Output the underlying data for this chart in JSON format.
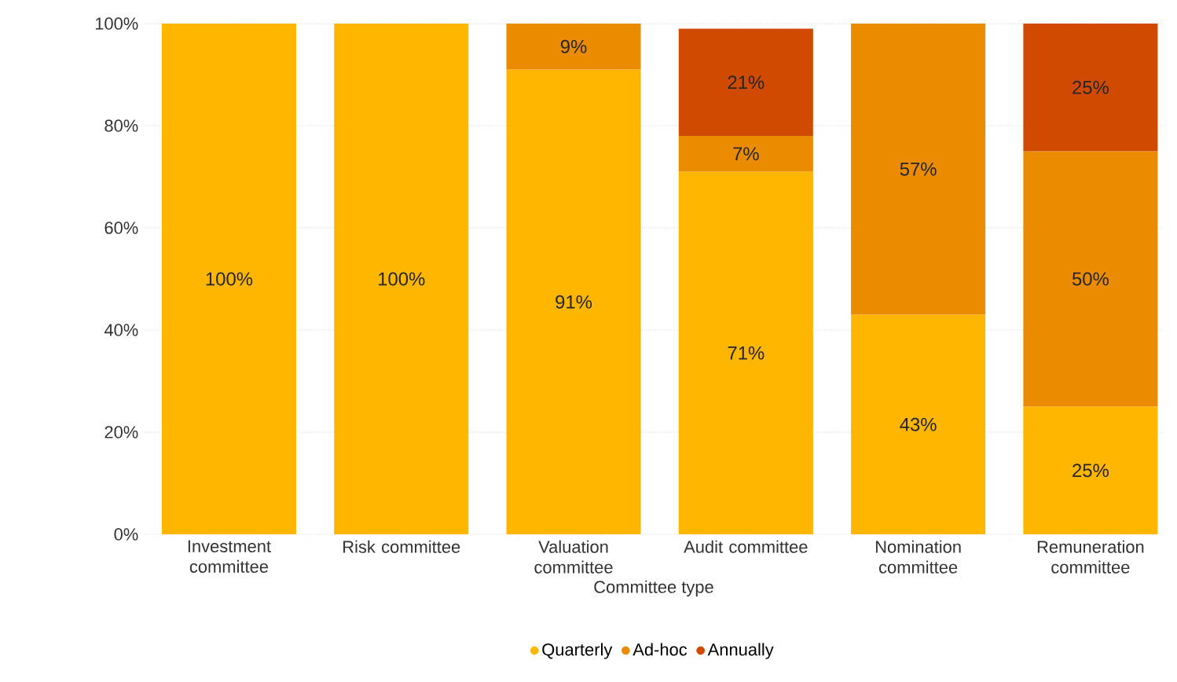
{
  "chart_data": {
    "type": "bar",
    "stacked": true,
    "xlabel": "Committee type",
    "categories": [
      "Investment committee",
      "Risk committee",
      "Valuation committee",
      "Audit committee",
      "Nomination committee",
      "Remuneration committee"
    ],
    "series": [
      {
        "name": "Quarterly",
        "color": "#ffb600",
        "values": [
          100,
          100,
          91,
          71,
          43,
          25
        ],
        "value_labels": [
          "100%",
          "100%",
          "91%",
          "71%",
          "43%",
          "25%"
        ]
      },
      {
        "name": "Ad-hoc",
        "color": "#eb8c00",
        "values": [
          null,
          null,
          9,
          7,
          57,
          50
        ],
        "value_labels": [
          null,
          null,
          "9%",
          "7%",
          "57%",
          "50%"
        ]
      },
      {
        "name": "Annually",
        "color": "#d04a02",
        "values": [
          null,
          null,
          null,
          21,
          null,
          25
        ],
        "value_labels": [
          null,
          null,
          null,
          "21%",
          null,
          "25%"
        ]
      }
    ],
    "ylim": [
      0,
      100
    ],
    "yticks": [
      {
        "value": 0,
        "label": "0%"
      },
      {
        "value": 20,
        "label": "20%"
      },
      {
        "value": 40,
        "label": "40%"
      },
      {
        "value": 60,
        "label": "60%"
      },
      {
        "value": 80,
        "label": "80%"
      },
      {
        "value": 100,
        "label": "100%"
      }
    ],
    "grid": "y",
    "legend": "bottom"
  }
}
